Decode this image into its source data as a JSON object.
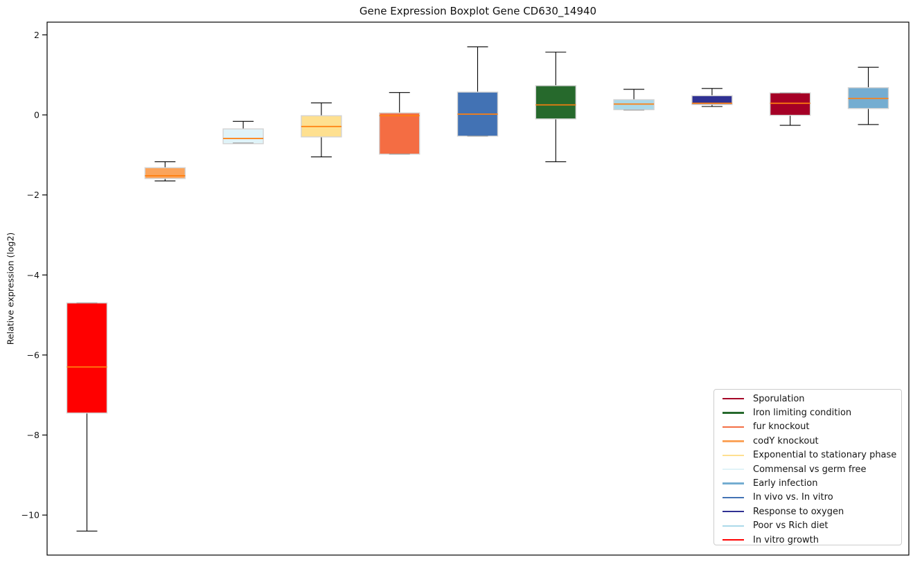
{
  "title": "Gene Expression Boxplot Gene CD630_14940",
  "ylabel": "Relative expression (log2)",
  "chart_data": {
    "type": "boxplot",
    "title": "Gene Expression Boxplot Gene CD630_14940",
    "ylabel": "Relative expression (log2)",
    "xlabel": "",
    "ylim": [
      -11.0,
      2.318
    ],
    "yticks": [
      2,
      0,
      -2,
      -4,
      -6,
      -8,
      -10
    ],
    "grid": false,
    "legend_position": "lower right",
    "median_color": "#ff7f0e",
    "boxes": [
      {
        "name": "In vitro growth",
        "color": "#ff0000",
        "whisker_low": -10.4,
        "q1": -7.45,
        "median": -6.3,
        "q3": -4.7,
        "whisker_high": -4.7
      },
      {
        "name": "codY knockout",
        "color": "#fba45b",
        "whisker_low": -1.65,
        "q1": -1.59,
        "median": -1.52,
        "q3": -1.32,
        "whisker_high": -1.17
      },
      {
        "name": "Commensal vs germ free",
        "color": "#e0f3f8",
        "whisker_low": -0.7,
        "q1": -0.72,
        "median": -0.59,
        "q3": -0.35,
        "whisker_high": -0.16
      },
      {
        "name": "Exponential to stationary phase",
        "color": "#fee090",
        "whisker_low": -1.05,
        "q1": -0.55,
        "median": -0.29,
        "q3": -0.02,
        "whisker_high": 0.3
      },
      {
        "name": "fur knockout",
        "color": "#f46d43",
        "whisker_low": -0.98,
        "q1": -0.98,
        "median": -0.02,
        "q3": 0.05,
        "whisker_high": 0.56
      },
      {
        "name": "In vivo vs. In vitro",
        "color": "#4272b4",
        "whisker_low": -0.53,
        "q1": -0.53,
        "median": 0.02,
        "q3": 0.57,
        "whisker_high": 1.7
      },
      {
        "name": "Iron limiting condition",
        "color": "#26692c",
        "whisker_low": -1.17,
        "q1": -0.1,
        "median": 0.25,
        "q3": 0.73,
        "whisker_high": 1.57
      },
      {
        "name": "Poor vs Rich diet",
        "color": "#abd9e9",
        "whisker_low": 0.12,
        "q1": 0.13,
        "median": 0.27,
        "q3": 0.38,
        "whisker_high": 0.64
      },
      {
        "name": "Response to oxygen",
        "color": "#303193",
        "whisker_low": 0.21,
        "q1": 0.26,
        "median": 0.29,
        "q3": 0.48,
        "whisker_high": 0.66
      },
      {
        "name": "Sporulation",
        "color": "#a50026",
        "whisker_low": -0.26,
        "q1": -0.01,
        "median": 0.29,
        "q3": 0.55,
        "whisker_high": 0.55
      },
      {
        "name": "Early infection",
        "color": "#74add1",
        "whisker_low": -0.24,
        "q1": 0.16,
        "median": 0.41,
        "q3": 0.68,
        "whisker_high": 1.19
      }
    ],
    "legend": [
      {
        "label": "Sporulation",
        "color": "#a50026"
      },
      {
        "label": "Iron limiting condition",
        "color": "#26692c"
      },
      {
        "label": "fur knockout",
        "color": "#f46d43"
      },
      {
        "label": "codY knockout",
        "color": "#fba45b"
      },
      {
        "label": "Exponential to stationary phase",
        "color": "#fee090"
      },
      {
        "label": "Commensal vs germ free",
        "color": "#e0f3f8"
      },
      {
        "label": "Early infection",
        "color": "#74add1"
      },
      {
        "label": "In vivo vs. In vitro",
        "color": "#4272b4"
      },
      {
        "label": "Response to oxygen",
        "color": "#303193"
      },
      {
        "label": "Poor vs Rich diet",
        "color": "#abd9e9"
      },
      {
        "label": "In vitro growth",
        "color": "#ff0000"
      }
    ]
  }
}
